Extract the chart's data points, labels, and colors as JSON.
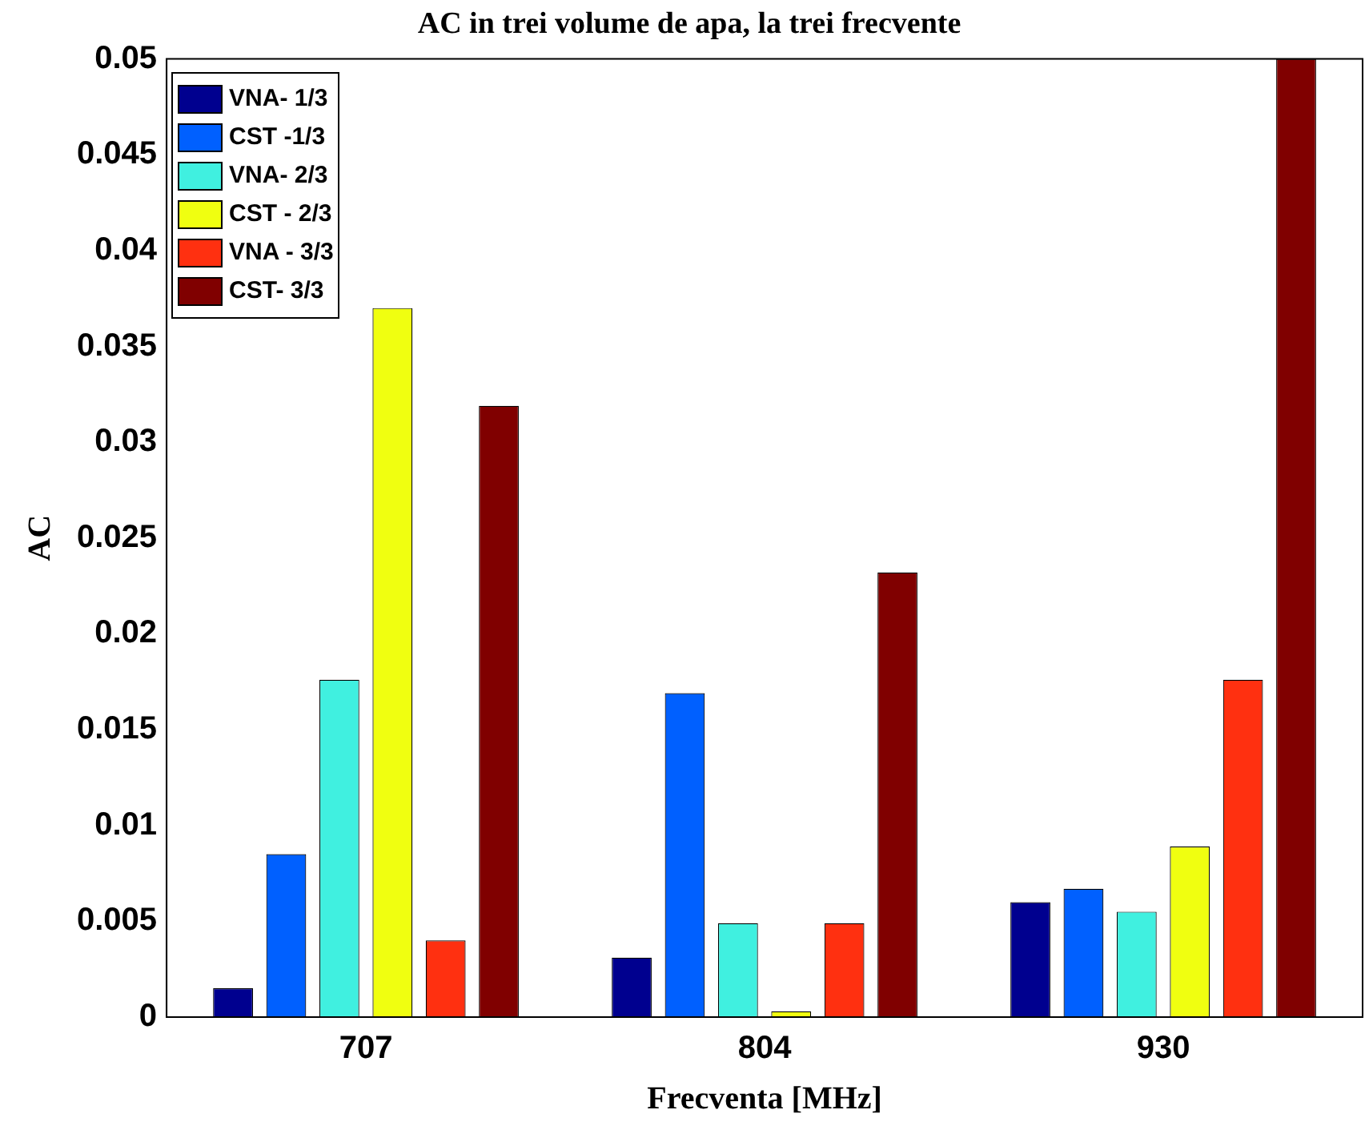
{
  "chart_data": {
    "type": "bar",
    "title": "AC in trei volume de apa, la trei frecvente",
    "xlabel": "Frecventa [MHz]",
    "ylabel": "AC",
    "categories": [
      "707",
      "804",
      "930"
    ],
    "series": [
      {
        "name": "VNA- 1/3",
        "color": "#00008f",
        "values": [
          0.0015,
          0.0031,
          0.006
        ]
      },
      {
        "name": "CST -1/3",
        "color": "#0060ff",
        "values": [
          0.0085,
          0.0169,
          0.0067
        ]
      },
      {
        "name": "VNA- 2/3",
        "color": "#40f0e0",
        "values": [
          0.0176,
          0.0049,
          0.0055
        ]
      },
      {
        "name": "CST - 2/3",
        "color": "#f0ff10",
        "values": [
          0.037,
          0.0003,
          0.0089
        ]
      },
      {
        "name": "VNA - 3/3",
        "color": "#ff3010",
        "values": [
          0.004,
          0.0049,
          0.0176
        ]
      },
      {
        "name": "CST- 3/3",
        "color": "#800000",
        "values": [
          0.0319,
          0.0232,
          0.05
        ]
      }
    ],
    "ylim": [
      0,
      0.05
    ],
    "yticks": [
      0,
      0.005,
      0.01,
      0.015,
      0.02,
      0.025,
      0.03,
      0.035,
      0.04,
      0.045,
      0.05
    ],
    "grid": false,
    "legend": "top left"
  }
}
